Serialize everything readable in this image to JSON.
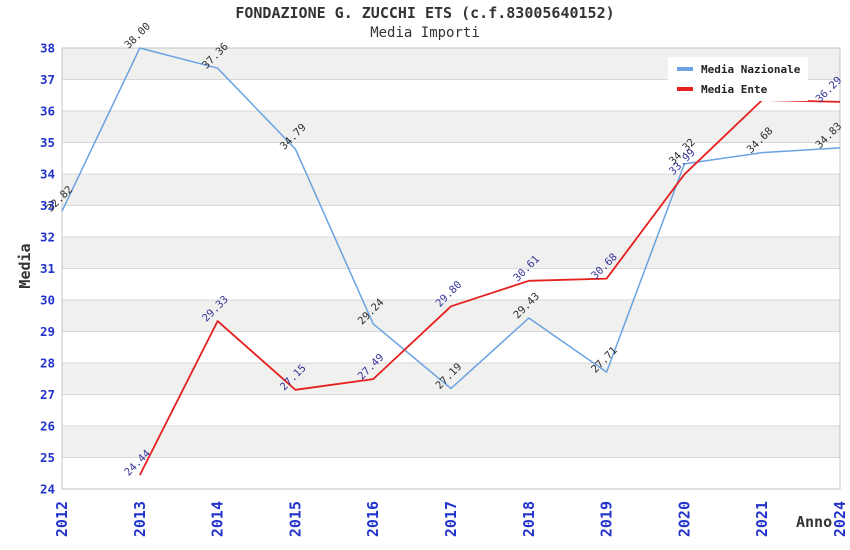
{
  "chart_data": {
    "type": "line",
    "title": "FONDAZIONE G. ZUCCHI ETS (c.f.83005640152)",
    "subtitle": "Media Importi",
    "xlabel": "Anno",
    "ylabel": "Media",
    "ylim": [
      24,
      38
    ],
    "y_tick_step": 1,
    "grid": "horizontal",
    "legend_position": "top-right",
    "categories": [
      "2012",
      "2013",
      "2014",
      "2015",
      "2016",
      "2017",
      "2018",
      "2019",
      "2020",
      "2021",
      "2024"
    ],
    "series": [
      {
        "name": "Media Nazionale",
        "color": "#6aa2e2",
        "label_color": "#2d2d2d",
        "values": [
          32.82,
          38.0,
          37.36,
          34.79,
          29.24,
          27.19,
          29.43,
          27.71,
          34.32,
          34.68,
          34.83
        ],
        "point_labels": [
          "32.82",
          "38.00",
          "37.36",
          "34.79",
          "29.24",
          "27.19",
          "29.43",
          "27.71",
          "34.32",
          "34.68",
          "34.83"
        ]
      },
      {
        "name": "Media Ente",
        "color": "#e61f1f",
        "label_color": "#333399",
        "values": [
          null,
          24.44,
          29.33,
          27.15,
          27.49,
          29.8,
          30.61,
          30.68,
          33.99,
          36.35,
          36.29
        ],
        "point_labels": [
          null,
          "24.44",
          "29.33",
          "27.15",
          "27.49",
          "29.80",
          "30.61",
          "30.68",
          "33.99",
          null,
          "36.29"
        ]
      }
    ],
    "colors": {
      "axis_tick_color": "#2233cc",
      "grid_color": "#d8d8d8",
      "border_color": "#c4c4c4",
      "band_gray": "#f0f0ef",
      "band_white": "#ffffff",
      "title_color": "#333333"
    }
  }
}
